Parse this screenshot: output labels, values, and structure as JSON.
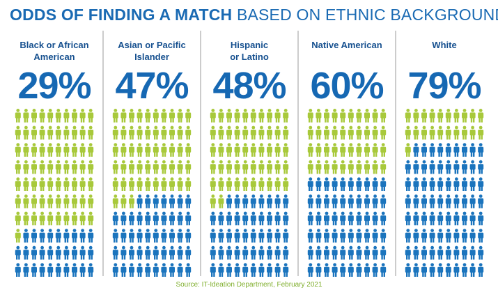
{
  "chart_data": {
    "type": "pictogram",
    "title": "ODDS OF FINDING A MATCH",
    "subtitle": "BASED ON ETHNIC BACKGROUND",
    "categories": [
      "Black or African\nAmerican",
      "Asian or Pacific\nIslander",
      "Hispanic\nor Latino",
      "Native American",
      "White"
    ],
    "values": [
      29,
      47,
      48,
      60,
      79
    ],
    "value_labels": [
      "29%",
      "47%",
      "48%",
      "60%",
      "79%"
    ],
    "color": "#1b74bd",
    "rest_color": "#a8c93b",
    "source": "Source: IT-Ideation Department, February 2021"
  }
}
